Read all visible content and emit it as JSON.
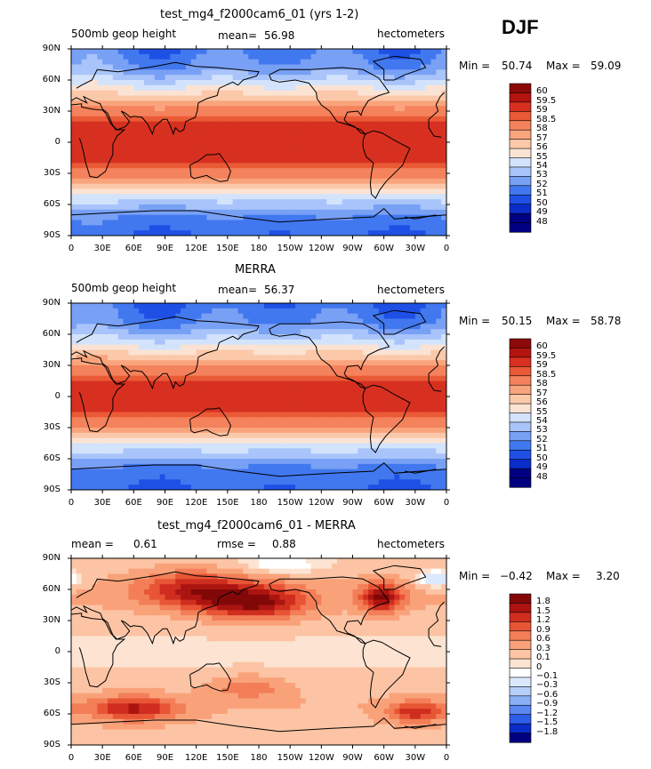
{
  "season": "DJF",
  "lat_ticks": [
    "90N",
    "60N",
    "30N",
    "0",
    "30S",
    "60S",
    "90S"
  ],
  "lon_ticks": [
    "0",
    "30E",
    "60E",
    "90E",
    "120E",
    "150E",
    "180",
    "150W",
    "120W",
    "90W",
    "60W",
    "30W",
    "0"
  ],
  "colors": {
    "abs": [
      "#000080",
      "#0a2cc9",
      "#1e50e6",
      "#4178ef",
      "#78a0f5",
      "#a8c4fa",
      "#d3e3fc",
      "#fbe3d4",
      "#fcc8aa",
      "#f9a47c",
      "#f4825c",
      "#ea5a36",
      "#d73020",
      "#b4140f",
      "#8c0a0a"
    ],
    "diff": [
      "#000080",
      "#0a2cc9",
      "#2d5ee8",
      "#5a87f0",
      "#8cb0f6",
      "#b6cffa",
      "#dce8fd",
      "#ffffff",
      "#fde3d2",
      "#fcc4a4",
      "#f9a27a",
      "#f37e57",
      "#e85535",
      "#cf2e1f",
      "#ab1410",
      "#820808"
    ]
  },
  "panels": [
    {
      "title": "test_mg4_f2000cam6_01 (yrs 1-2)",
      "left_label": "500mb geop height",
      "mean_label": "mean=",
      "mean_value": "56.98",
      "units": "hectometers",
      "stats": {
        "min_label": "Min =",
        "min": "50.74",
        "max_label": "Max =",
        "max": "59.09"
      },
      "levels": [
        "60",
        "59.5",
        "59",
        "58.5",
        "58",
        "57",
        "56",
        "55",
        "54",
        "53",
        "52",
        "51",
        "50",
        "49",
        "48"
      ]
    },
    {
      "title": "MERRA",
      "left_label": "500mb geop height",
      "mean_label": "mean=",
      "mean_value": "56.37",
      "units": "hectometers",
      "stats": {
        "min_label": "Min =",
        "min": "50.15",
        "max_label": "Max =",
        "max": "58.78"
      },
      "levels": [
        "60",
        "59.5",
        "59",
        "58.5",
        "58",
        "57",
        "56",
        "55",
        "54",
        "53",
        "52",
        "51",
        "50",
        "49",
        "48"
      ]
    },
    {
      "title": "test_mg4_f2000cam6_01 - MERRA",
      "left_label": "mean =",
      "left_value": "0.61",
      "rmse_label": "rmse =",
      "rmse_value": "0.88",
      "units": "hectometers",
      "stats": {
        "min_label": "Min =",
        "min": "−0.42",
        "max_label": "Max =",
        "max": "3.20"
      },
      "levels": [
        "1.8",
        "1.5",
        "1.2",
        "0.9",
        "0.6",
        "0.3",
        "0.1",
        "0",
        "−0.1",
        "−0.3",
        "−0.6",
        "−0.9",
        "−1.2",
        "−1.5",
        "−1.8"
      ]
    }
  ],
  "chart_data": [
    {
      "type": "heatmap",
      "title": "test_mg4_f2000cam6_01 (yrs 1-2)",
      "variable": "500mb geop height",
      "units": "hectometers",
      "mean": 56.98,
      "min": 50.74,
      "max": 59.09,
      "x_range": [
        0,
        360
      ],
      "y_range": [
        -90,
        90
      ],
      "contour_levels": [
        48,
        49,
        50,
        51,
        52,
        53,
        54,
        55,
        56,
        57,
        58,
        58.5,
        59,
        59.5,
        60
      ],
      "zonal_mean_profile": {
        "lat": [
          90,
          70,
          50,
          30,
          15,
          0,
          -15,
          -30,
          -50,
          -70,
          -90
        ],
        "value": [
          50.5,
          51.5,
          54.5,
          57.5,
          58.8,
          59.0,
          58.8,
          57.5,
          54.0,
          51.0,
          50.0
        ]
      }
    },
    {
      "type": "heatmap",
      "title": "MERRA",
      "variable": "500mb geop height",
      "units": "hectometers",
      "mean": 56.37,
      "min": 50.15,
      "max": 58.78,
      "x_range": [
        0,
        360
      ],
      "y_range": [
        -90,
        90
      ],
      "contour_levels": [
        48,
        49,
        50,
        51,
        52,
        53,
        54,
        55,
        56,
        57,
        58,
        58.5,
        59,
        59.5,
        60
      ],
      "zonal_mean_profile": {
        "lat": [
          90,
          70,
          50,
          30,
          15,
          0,
          -15,
          -30,
          -50,
          -70,
          -90
        ],
        "value": [
          50.2,
          51.0,
          53.8,
          57.0,
          58.5,
          58.7,
          58.5,
          57.0,
          53.3,
          50.6,
          50.0
        ]
      }
    },
    {
      "type": "heatmap",
      "title": "test_mg4_f2000cam6_01 - MERRA",
      "units": "hectometers",
      "mean": 0.61,
      "rmse": 0.88,
      "min": -0.42,
      "max": 3.2,
      "x_range": [
        0,
        360
      ],
      "y_range": [
        -90,
        90
      ],
      "contour_levels": [
        -1.8,
        -1.5,
        -1.2,
        -0.9,
        -0.6,
        -0.3,
        -0.1,
        0,
        0.1,
        0.3,
        0.6,
        0.9,
        1.2,
        1.5,
        1.8
      ],
      "zonal_mean_profile": {
        "lat": [
          90,
          70,
          50,
          30,
          15,
          0,
          -15,
          -30,
          -50,
          -70,
          -90
        ],
        "value": [
          0.4,
          0.9,
          1.2,
          0.5,
          0.3,
          0.3,
          0.3,
          0.6,
          1.0,
          0.8,
          0.5
        ]
      }
    }
  ]
}
